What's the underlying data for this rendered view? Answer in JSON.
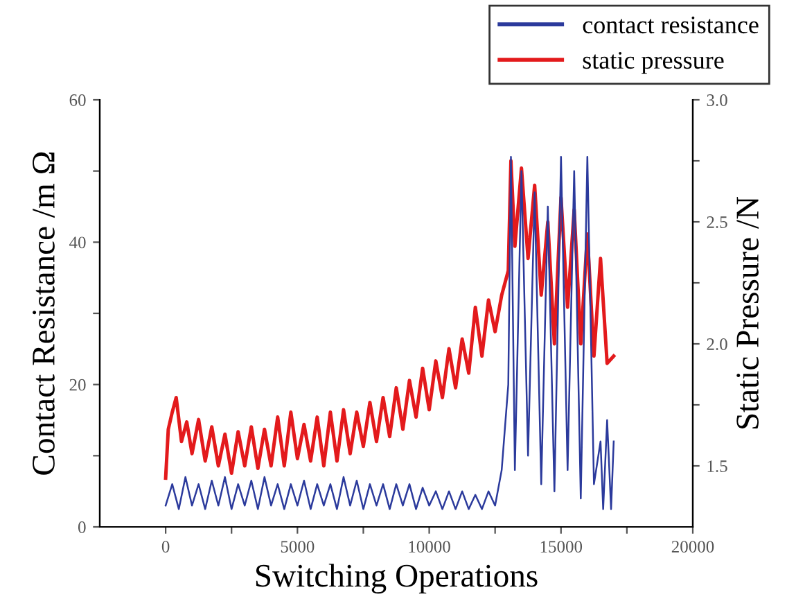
{
  "chart_data": {
    "type": "line",
    "xlabel": "Switching Operations",
    "ylabel": "Contact Resistance /m Ω",
    "y2label": "Static Pressure /N",
    "xlim": [
      -2500,
      20000
    ],
    "xticks": [
      0,
      {
        "value": 2500,
        "label": null
      },
      5000,
      {
        "value": 7500,
        "label": null
      },
      10000,
      {
        "value": 12500,
        "label": null
      },
      15000,
      {
        "value": 17500,
        "label": null
      },
      20000
    ],
    "ylim": [
      0,
      60
    ],
    "yticks": [
      0,
      {
        "value": 10,
        "label": null
      },
      20,
      {
        "value": 30,
        "label": null
      },
      40,
      {
        "value": 50,
        "label": null
      },
      60
    ],
    "y2lim": [
      1.25,
      3.0
    ],
    "y2ticks": [
      {
        "value": 1.5,
        "label": "1.5"
      },
      {
        "value": 1.75,
        "label": null
      },
      {
        "value": 2.0,
        "label": "2.0"
      },
      {
        "value": 2.25,
        "label": null
      },
      {
        "value": 2.5,
        "label": "2.5"
      },
      {
        "value": 2.75,
        "label": null
      },
      {
        "value": 3.0,
        "label": "3.0"
      }
    ],
    "grid": false,
    "legend": "top right",
    "series": [
      {
        "name": "contact resistance",
        "color": "#2b3a9c",
        "x": [
          0,
          250,
          500,
          750,
          1000,
          1250,
          1500,
          1750,
          2000,
          2250,
          2500,
          2750,
          3000,
          3250,
          3500,
          3750,
          4000,
          4250,
          4500,
          4750,
          5000,
          5250,
          5500,
          5750,
          6000,
          6250,
          6500,
          6750,
          7000,
          7250,
          7500,
          7750,
          8000,
          8250,
          8500,
          8750,
          9000,
          9250,
          9500,
          9750,
          10000,
          10250,
          10500,
          10750,
          11000,
          11250,
          11500,
          11750,
          12000,
          12250,
          12500,
          12750,
          13000,
          13100,
          13250,
          13500,
          13750,
          14000,
          14250,
          14500,
          14750,
          15000,
          15250,
          15500,
          15750,
          16000,
          16250,
          16500,
          16600,
          16750,
          16900,
          17000
        ],
        "values": [
          3,
          6,
          2.5,
          7,
          3,
          6,
          2.5,
          6.5,
          3,
          7,
          2.5,
          6,
          3,
          6.5,
          2.5,
          7,
          3,
          6,
          2.5,
          6,
          3,
          6.5,
          2.5,
          6,
          3,
          6,
          2.5,
          7,
          3,
          6.5,
          2.5,
          6,
          3,
          6,
          2.5,
          6,
          3,
          6,
          2.5,
          5.5,
          3,
          5,
          2.5,
          5,
          2.5,
          5,
          2.5,
          4.5,
          2.5,
          5,
          3,
          8,
          20,
          52,
          8,
          50,
          10,
          47,
          6,
          45,
          5,
          52,
          8,
          50,
          4,
          52,
          6,
          12,
          2.5,
          15,
          2.5,
          12
        ]
      },
      {
        "name": "static pressure",
        "color": "#e31a1c",
        "axis": "y2",
        "x": [
          0,
          100,
          250,
          400,
          600,
          800,
          1000,
          1250,
          1500,
          1750,
          2000,
          2250,
          2500,
          2750,
          3000,
          3250,
          3500,
          3750,
          4000,
          4250,
          4500,
          4750,
          5000,
          5250,
          5500,
          5750,
          6000,
          6250,
          6500,
          6750,
          7000,
          7250,
          7500,
          7750,
          8000,
          8250,
          8500,
          8750,
          9000,
          9250,
          9500,
          9750,
          10000,
          10250,
          10500,
          10750,
          11000,
          11250,
          11500,
          11750,
          12000,
          12250,
          12500,
          12750,
          13000,
          13100,
          13250,
          13500,
          13750,
          14000,
          14250,
          14500,
          14750,
          15000,
          15250,
          15500,
          15750,
          16000,
          16250,
          16500,
          16750,
          17000
        ],
        "values": [
          1.45,
          1.65,
          1.72,
          1.78,
          1.6,
          1.68,
          1.55,
          1.69,
          1.52,
          1.66,
          1.5,
          1.63,
          1.47,
          1.64,
          1.5,
          1.66,
          1.49,
          1.65,
          1.5,
          1.7,
          1.5,
          1.72,
          1.53,
          1.67,
          1.52,
          1.7,
          1.5,
          1.72,
          1.52,
          1.73,
          1.55,
          1.72,
          1.58,
          1.76,
          1.6,
          1.78,
          1.62,
          1.82,
          1.65,
          1.85,
          1.7,
          1.9,
          1.73,
          1.93,
          1.78,
          1.98,
          1.82,
          2.02,
          1.88,
          2.15,
          1.95,
          2.18,
          2.05,
          2.2,
          2.3,
          2.75,
          2.4,
          2.72,
          2.35,
          2.65,
          2.2,
          2.5,
          2.0,
          2.6,
          2.15,
          2.55,
          2.0,
          2.45,
          1.95,
          2.35,
          1.92,
          1.95
        ]
      }
    ]
  }
}
